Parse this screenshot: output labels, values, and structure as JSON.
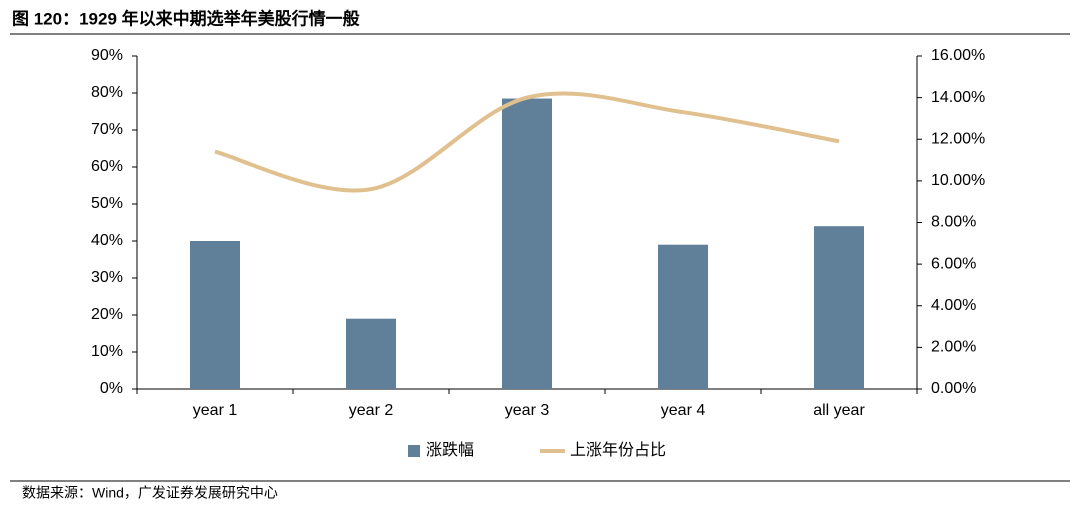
{
  "chart_data": {
    "type": "bar_line",
    "title": "图 120：1929 年以来中期选举年美股行情一般",
    "source": "数据来源：Wind，广发证券发展研究中心",
    "categories": [
      "year 1",
      "year 2",
      "year 3",
      "year 4",
      "all year"
    ],
    "series": [
      {
        "name": "涨跌幅",
        "type": "bar",
        "color": "#607f99",
        "values": [
          40,
          19,
          78.5,
          39,
          44
        ]
      },
      {
        "name": "上涨年份占比",
        "type": "line",
        "axis": "y2",
        "color": "#e0c08e",
        "values": [
          11.4,
          9.6,
          14.0,
          13.3,
          11.9
        ]
      }
    ],
    "ylim": [
      0,
      90
    ],
    "yticks": [
      {
        "value": 0,
        "label": "0%"
      },
      {
        "value": 10,
        "label": "10%"
      },
      {
        "value": 20,
        "label": "20%"
      },
      {
        "value": 30,
        "label": "30%"
      },
      {
        "value": 40,
        "label": "40%"
      },
      {
        "value": 50,
        "label": "50%"
      },
      {
        "value": 60,
        "label": "60%"
      },
      {
        "value": 70,
        "label": "70%"
      },
      {
        "value": 80,
        "label": "80%"
      },
      {
        "value": 90,
        "label": "90%"
      }
    ],
    "y2lim": [
      0,
      16
    ],
    "y2ticks": [
      {
        "value": 0,
        "label": "0.00%"
      },
      {
        "value": 2,
        "label": "2.00%"
      },
      {
        "value": 4,
        "label": "4.00%"
      },
      {
        "value": 6,
        "label": "6.00%"
      },
      {
        "value": 8,
        "label": "8.00%"
      },
      {
        "value": 10,
        "label": "10.00%"
      },
      {
        "value": 12,
        "label": "12.00%"
      },
      {
        "value": 14,
        "label": "14.00%"
      },
      {
        "value": 16,
        "label": "16.00%"
      }
    ],
    "legend": "bottom"
  }
}
